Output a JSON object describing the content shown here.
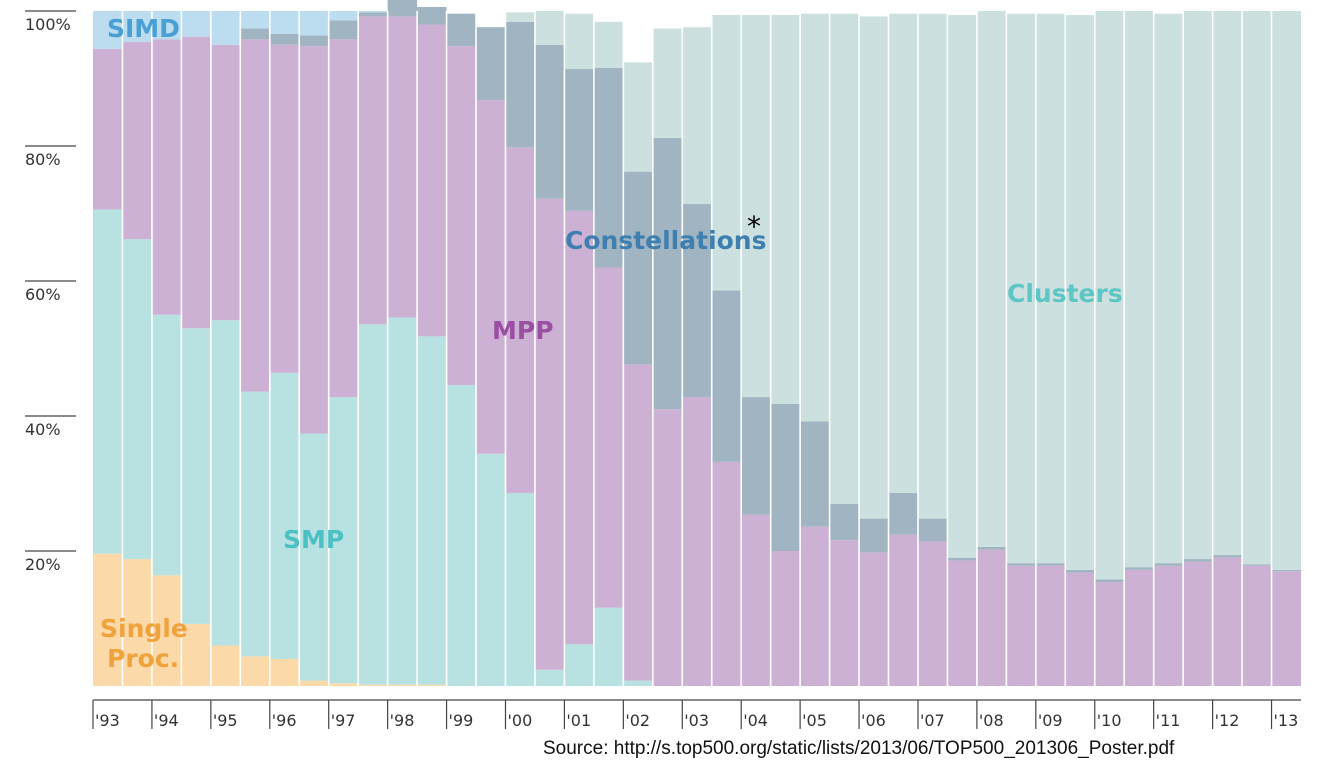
{
  "chart_data": {
    "type": "area",
    "stacked": true,
    "normalized_percent": true,
    "title": "",
    "xlabel": "",
    "ylabel": "",
    "ylim": [
      0,
      100
    ],
    "y_ticks": [
      20,
      40,
      60,
      80,
      100
    ],
    "y_tick_labels": [
      "20%",
      "40%",
      "60%",
      "80%",
      "100%"
    ],
    "grid": false,
    "x_labels": [
      "'93",
      "'94",
      "'95",
      "'96",
      "'97",
      "'98",
      "'99",
      "'00",
      "'01",
      "'02",
      "'03",
      "'04",
      "'05",
      "'06",
      "'07",
      "'08",
      "'09",
      "'10",
      "'11",
      "'12",
      "'13"
    ],
    "x": [
      "1993-06",
      "1993-11",
      "1994-06",
      "1994-11",
      "1995-06",
      "1995-11",
      "1996-06",
      "1996-11",
      "1997-06",
      "1997-11",
      "1998-06",
      "1998-11",
      "1999-06",
      "1999-11",
      "2000-06",
      "2000-11",
      "2001-06",
      "2001-11",
      "2002-06",
      "2002-11",
      "2003-06",
      "2003-11",
      "2004-06",
      "2004-11",
      "2005-06",
      "2005-11",
      "2006-06",
      "2006-11",
      "2007-06",
      "2007-11",
      "2008-06",
      "2008-11",
      "2009-06",
      "2009-11",
      "2010-06",
      "2010-11",
      "2011-06",
      "2011-11",
      "2012-06",
      "2012-11",
      "2013-06"
    ],
    "series": [
      {
        "name": "Single Proc.",
        "color": "#fcd9a8",
        "values": [
          19.6,
          18.8,
          16.4,
          9.2,
          6,
          4.4,
          4,
          0.8,
          0.4,
          0.2,
          0.2,
          0.2,
          0,
          0,
          0,
          0,
          0,
          0,
          0,
          0,
          0,
          0,
          0,
          0,
          0,
          0,
          0,
          0,
          0,
          0,
          0,
          0,
          0,
          0,
          0,
          0,
          0,
          0,
          0,
          0,
          0
        ]
      },
      {
        "name": "SMP",
        "color": "#b8e2e2",
        "values": [
          51,
          47.4,
          38.6,
          43.8,
          48.2,
          39.2,
          42.4,
          36.6,
          42.4,
          53.4,
          54.4,
          51.6,
          44.6,
          34.4,
          28.6,
          2.4,
          6.2,
          11.6,
          0.8,
          0,
          0,
          0,
          0,
          0,
          0,
          0,
          0,
          0,
          0,
          0,
          0,
          0,
          0,
          0,
          0,
          0,
          0,
          0,
          0,
          0,
          0
        ]
      },
      {
        "name": "MPP",
        "color": "#cdb1d5",
        "values": [
          23.8,
          29.2,
          40.8,
          43.2,
          40.8,
          52.2,
          48.6,
          57.4,
          53,
          45.6,
          44.6,
          46.2,
          50.2,
          52.4,
          51.2,
          69.8,
          64.2,
          50.4,
          46.8,
          41,
          42.8,
          33.2,
          25.4,
          20,
          23.6,
          21.6,
          19.8,
          22.4,
          21.4,
          18.6,
          20.2,
          17.8,
          17.8,
          16.8,
          15.4,
          17.2,
          17.8,
          18.4,
          19,
          17.8,
          17
        ]
      },
      {
        "name": "Constellations",
        "color": "#a0b4c2",
        "values": [
          0,
          0,
          0,
          0,
          0,
          1.6,
          1.6,
          1.6,
          2.8,
          0.6,
          2.6,
          2.6,
          4.8,
          10.8,
          18.6,
          22.8,
          21,
          29.6,
          28.6,
          40.2,
          28.6,
          25.4,
          17.4,
          21.8,
          15.6,
          5.4,
          5,
          6.2,
          3.4,
          0.4,
          0.4,
          0.4,
          0.4,
          0.4,
          0.4,
          0.4,
          0.4,
          0.4,
          0.4,
          0.2,
          0.2
        ]
      },
      {
        "name": "Clusters",
        "color": "#cde0e0",
        "values": [
          0,
          0,
          0,
          0,
          0,
          0,
          0,
          0,
          0,
          0,
          0,
          0,
          0,
          0,
          1.4,
          5,
          8.2,
          6.8,
          16.2,
          16.2,
          26.2,
          40.8,
          56.6,
          57.6,
          60.4,
          72.6,
          74.4,
          71,
          74.8,
          80.4,
          79.4,
          81.4,
          81.4,
          82.2,
          84.2,
          82.4,
          81.4,
          81.2,
          80.6,
          82,
          82.8
        ]
      },
      {
        "name": "SIMD",
        "color": "#bcdcf0",
        "values": [
          5.6,
          4.6,
          4.2,
          3.8,
          5,
          2.6,
          3.4,
          3.6,
          1.4,
          0.2,
          0,
          0,
          0,
          0,
          0,
          0,
          0,
          0,
          0,
          0,
          0,
          0,
          0,
          0,
          0,
          0,
          0,
          0,
          0,
          0,
          0,
          0,
          0,
          0,
          0,
          0,
          0,
          0,
          0,
          0,
          0
        ]
      }
    ],
    "annotations": [
      {
        "text": "SIMD",
        "color": "#4a9fd5"
      },
      {
        "text": "SMP",
        "color": "#4cc1c4"
      },
      {
        "text": "Single",
        "color": "#f0a23c"
      },
      {
        "text": "Proc.",
        "color": "#f0a23c"
      },
      {
        "text": "MPP",
        "color": "#9b4fa3"
      },
      {
        "text": "Constellations",
        "color": "#3e7fb0"
      },
      {
        "text": "*",
        "color": "#000000"
      },
      {
        "text": "Clusters",
        "color": "#5cc6c4"
      }
    ]
  },
  "source_text": "Source: http://s.top500.org/static/lists/2013/06/TOP500_201306_Poster.pdf"
}
